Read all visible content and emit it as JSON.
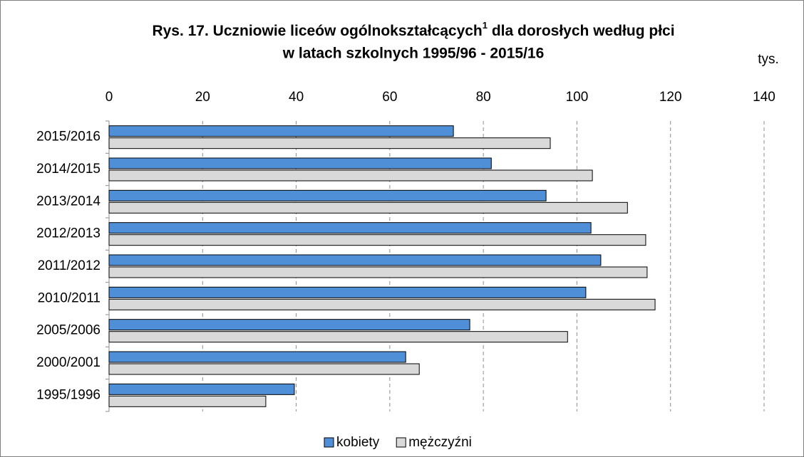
{
  "chart_data": {
    "type": "hbar",
    "title": {
      "main": "Rys. 17. Uczniowie liceów ogólnokształcących",
      "footnote_mark": "1",
      "rest": " dla dorosłych według płci",
      "line2": "w latach szkolnych 1995/96 - 2015/16"
    },
    "unit": "tys.",
    "categories": [
      "2015/2016",
      "2014/2015",
      "2013/2014",
      "2012/2013",
      "2011/2012",
      "2010/2011",
      "2005/2006",
      "2000/2001",
      "1995/1996"
    ],
    "series": [
      {
        "name": "kobiety",
        "color": "#4f8fd8",
        "values": [
          73.6,
          81.7,
          93.4,
          103.0,
          105.1,
          101.9,
          77.1,
          63.4,
          39.6
        ]
      },
      {
        "name": "mężczyźni",
        "color": "#d9d9d9",
        "values": [
          94.3,
          103.3,
          110.8,
          114.7,
          115.0,
          116.7,
          98.0,
          66.3,
          33.5
        ]
      }
    ],
    "xlim": [
      0,
      140
    ],
    "xticks": [
      0,
      20,
      40,
      60,
      80,
      100,
      120,
      140
    ],
    "grid": true,
    "legend": "bottom"
  }
}
